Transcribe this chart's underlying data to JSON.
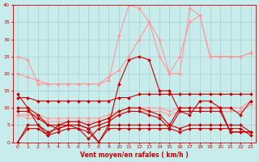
{
  "x": [
    0,
    1,
    2,
    3,
    4,
    5,
    6,
    7,
    8,
    9,
    10,
    11,
    12,
    13,
    14,
    15,
    16,
    17,
    18,
    19,
    20,
    21,
    22,
    23
  ],
  "series": [
    {
      "name": "light_upper1",
      "color": "#ff9999",
      "linewidth": 0.8,
      "marker": "D",
      "markersize": 2.0,
      "y": [
        25,
        24,
        17,
        17,
        17,
        17,
        17,
        17,
        17,
        18,
        31,
        40,
        39,
        35,
        30,
        20,
        20,
        39,
        37,
        25,
        25,
        25,
        25,
        26
      ]
    },
    {
      "name": "light_upper2",
      "color": "#ff9999",
      "linewidth": 0.8,
      "marker": "D",
      "markersize": 2.0,
      "y": [
        20,
        19,
        18,
        17,
        17,
        17,
        17,
        17,
        17,
        19,
        21,
        25,
        30,
        35,
        25,
        20,
        25,
        35,
        37,
        25,
        25,
        25,
        25,
        26
      ]
    },
    {
      "name": "light_mid1",
      "color": "#ff9999",
      "linewidth": 0.8,
      "marker": "D",
      "markersize": 2.0,
      "y": [
        8,
        8,
        8,
        7,
        7,
        7,
        7,
        7,
        7,
        8,
        9,
        10,
        10,
        10,
        10,
        9,
        10,
        10,
        10,
        10,
        10,
        10,
        10,
        12
      ]
    },
    {
      "name": "light_low1",
      "color": "#ff9999",
      "linewidth": 0.8,
      "marker": "D",
      "markersize": 2.0,
      "y": [
        8,
        7,
        7,
        6,
        6,
        6,
        6,
        6,
        6,
        7,
        8,
        9,
        9,
        9,
        9,
        8,
        9,
        9,
        9,
        9,
        9,
        9,
        9,
        11
      ]
    },
    {
      "name": "dark_main",
      "color": "#cc0000",
      "linewidth": 0.8,
      "marker": "D",
      "markersize": 2.0,
      "y": [
        14,
        10,
        5,
        2,
        5,
        5,
        4,
        1,
        4,
        5,
        17,
        24,
        25,
        24,
        15,
        15,
        9,
        8,
        12,
        12,
        10,
        10,
        8,
        12
      ]
    },
    {
      "name": "dark_flat1",
      "color": "#cc0000",
      "linewidth": 0.8,
      "marker": "D",
      "markersize": 2.0,
      "y": [
        10,
        10,
        8,
        5,
        5,
        6,
        6,
        5,
        6,
        7,
        9,
        10,
        10,
        9,
        8,
        5,
        10,
        10,
        10,
        10,
        10,
        3,
        3,
        3
      ]
    },
    {
      "name": "dark_flat2",
      "color": "#cc0000",
      "linewidth": 0.8,
      "marker": "D",
      "markersize": 2.0,
      "y": [
        9,
        9,
        7,
        5,
        4,
        5,
        5,
        4,
        5,
        6,
        8,
        9,
        9,
        8,
        7,
        4,
        9,
        9,
        9,
        9,
        9,
        3,
        3,
        3
      ]
    },
    {
      "name": "dark_low",
      "color": "#cc0000",
      "linewidth": 0.8,
      "marker": "D",
      "markersize": 2.0,
      "y": [
        0,
        5,
        5,
        3,
        4,
        5,
        5,
        4,
        0,
        5,
        5,
        5,
        5,
        5,
        5,
        5,
        4,
        5,
        5,
        5,
        5,
        5,
        5,
        3
      ]
    },
    {
      "name": "dark_bot",
      "color": "#cc0000",
      "linewidth": 0.8,
      "marker": "D",
      "markersize": 2.0,
      "y": [
        0,
        4,
        4,
        2,
        3,
        4,
        4,
        3,
        0,
        4,
        4,
        4,
        4,
        4,
        4,
        4,
        3,
        4,
        4,
        4,
        4,
        4,
        4,
        2
      ]
    },
    {
      "name": "dark_diag",
      "color": "#cc0000",
      "linewidth": 0.8,
      "marker": "D",
      "markersize": 2.0,
      "y": [
        13,
        13,
        12,
        12,
        12,
        12,
        12,
        12,
        12,
        12,
        13,
        13,
        14,
        14,
        14,
        14,
        14,
        14,
        14,
        14,
        14,
        14,
        14,
        14
      ]
    }
  ],
  "xlabel": "Vent moyen/en rafales ( km/h )",
  "xlim": [
    -0.5,
    23.5
  ],
  "ylim": [
    0,
    40
  ],
  "yticks": [
    0,
    5,
    10,
    15,
    20,
    25,
    30,
    35,
    40
  ],
  "xticks": [
    0,
    1,
    2,
    3,
    4,
    5,
    6,
    7,
    8,
    9,
    10,
    11,
    12,
    13,
    14,
    15,
    16,
    17,
    18,
    19,
    20,
    21,
    22,
    23
  ],
  "background_color": "#c8ecec",
  "grid_color": "#aacccc"
}
